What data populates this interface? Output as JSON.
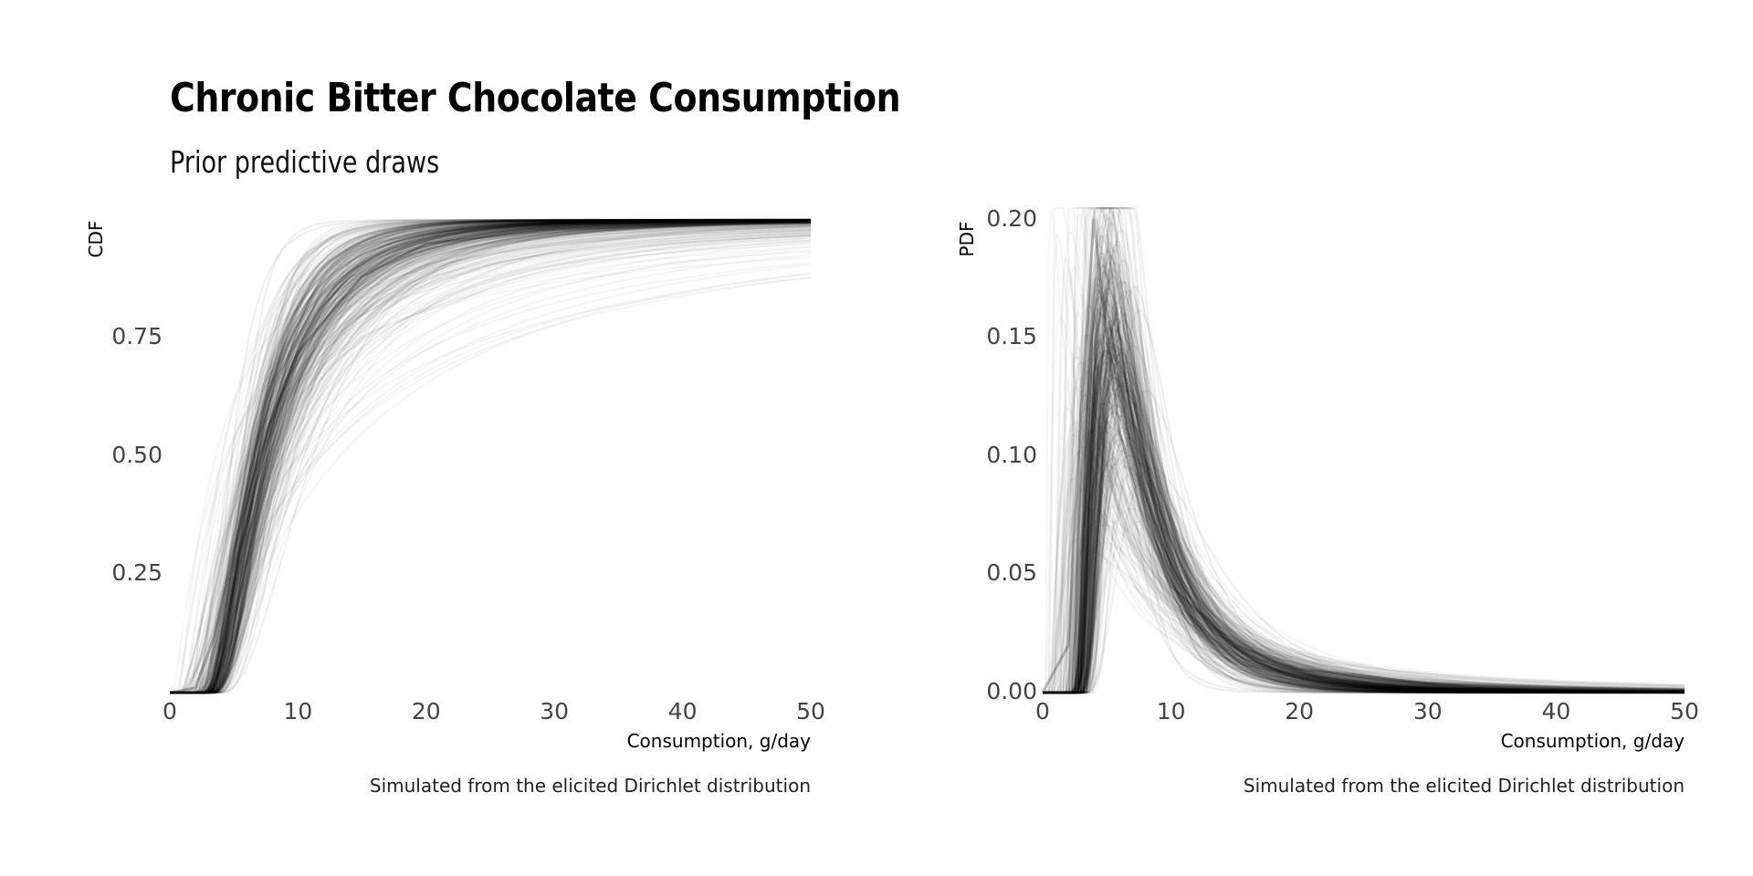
{
  "page": {
    "title": "Chronic Bitter Chocolate Consumption",
    "subtitle": "Prior predictive draws"
  },
  "chart_data": [
    {
      "type": "line",
      "panel": "left",
      "xlabel": "Consumption, g/day",
      "ylabel": "CDF",
      "caption": "Simulated from the elicited Dirichlet distribution",
      "xlim": [
        0,
        50
      ],
      "ylim": [
        0,
        1
      ],
      "x_ticks": [
        "0",
        "10",
        "20",
        "30",
        "40",
        "50"
      ],
      "y_ticks": [
        "0.25",
        "0.50",
        "0.75"
      ],
      "y_tick_values": [
        0.25,
        0.5,
        0.75
      ],
      "grid": false,
      "line_color": "#000000",
      "n_draws_approx": 300,
      "typical_curve": {
        "x": [
          0,
          2,
          3.5,
          5,
          7.5,
          10,
          15,
          20,
          30,
          40,
          50
        ],
        "y": [
          0.0,
          0.01,
          0.12,
          0.3,
          0.55,
          0.72,
          0.88,
          0.95,
          0.98,
          0.99,
          1.0
        ]
      }
    },
    {
      "type": "line",
      "panel": "right",
      "xlabel": "Consumption, g/day",
      "ylabel": "PDF",
      "caption": "Simulated from the elicited Dirichlet distribution",
      "xlim": [
        0,
        50
      ],
      "ylim": [
        0,
        0.2
      ],
      "x_ticks": [
        "0",
        "10",
        "20",
        "30",
        "40",
        "50"
      ],
      "y_ticks": [
        "0.00",
        "0.05",
        "0.10",
        "0.15",
        "0.20"
      ],
      "y_tick_values": [
        0,
        0.05,
        0.1,
        0.15,
        0.2
      ],
      "grid": false,
      "line_color": "#000000",
      "n_draws_approx": 300,
      "typical_curve": {
        "x": [
          0,
          2,
          3,
          4,
          5,
          6,
          8,
          10,
          15,
          20,
          30,
          40,
          50
        ],
        "y": [
          0.0,
          0.02,
          0.12,
          0.2,
          0.15,
          0.11,
          0.07,
          0.045,
          0.02,
          0.01,
          0.004,
          0.002,
          0.001
        ]
      }
    }
  ]
}
